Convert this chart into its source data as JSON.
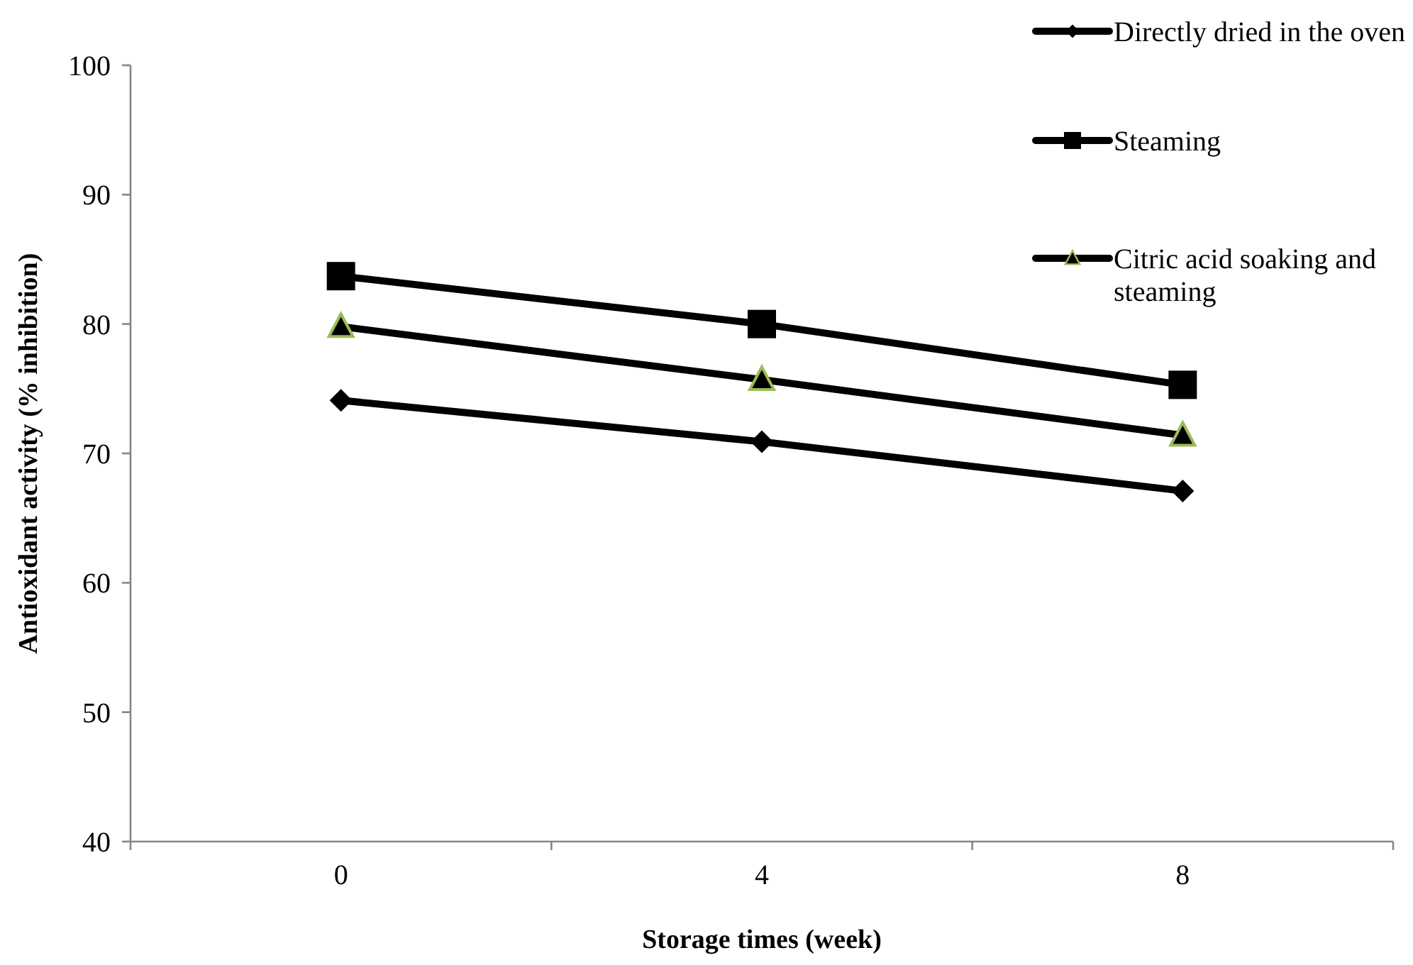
{
  "chart_data": {
    "type": "line",
    "xlabel": "Storage times (week)",
    "ylabel": "Antioxidant activity (% inhibition)",
    "categories": [
      "0",
      "4",
      "8"
    ],
    "ylim": [
      40,
      100
    ],
    "yticks": [
      40,
      50,
      60,
      70,
      80,
      90,
      100
    ],
    "grid": false,
    "legend": "top right",
    "line_style": "solid",
    "series": [
      {
        "name": "Directly dried in the oven",
        "color": "#000000",
        "marker": "diamond",
        "values": [
          74.1,
          70.9,
          67.1
        ]
      },
      {
        "name": "Steaming",
        "color": "#000000",
        "marker": "square",
        "values": [
          83.7,
          80.0,
          75.3
        ]
      },
      {
        "name": "Citric acid soaking and steaming",
        "color": "#000000",
        "marker": "triangle",
        "values": [
          79.8,
          75.7,
          71.4
        ]
      }
    ]
  }
}
